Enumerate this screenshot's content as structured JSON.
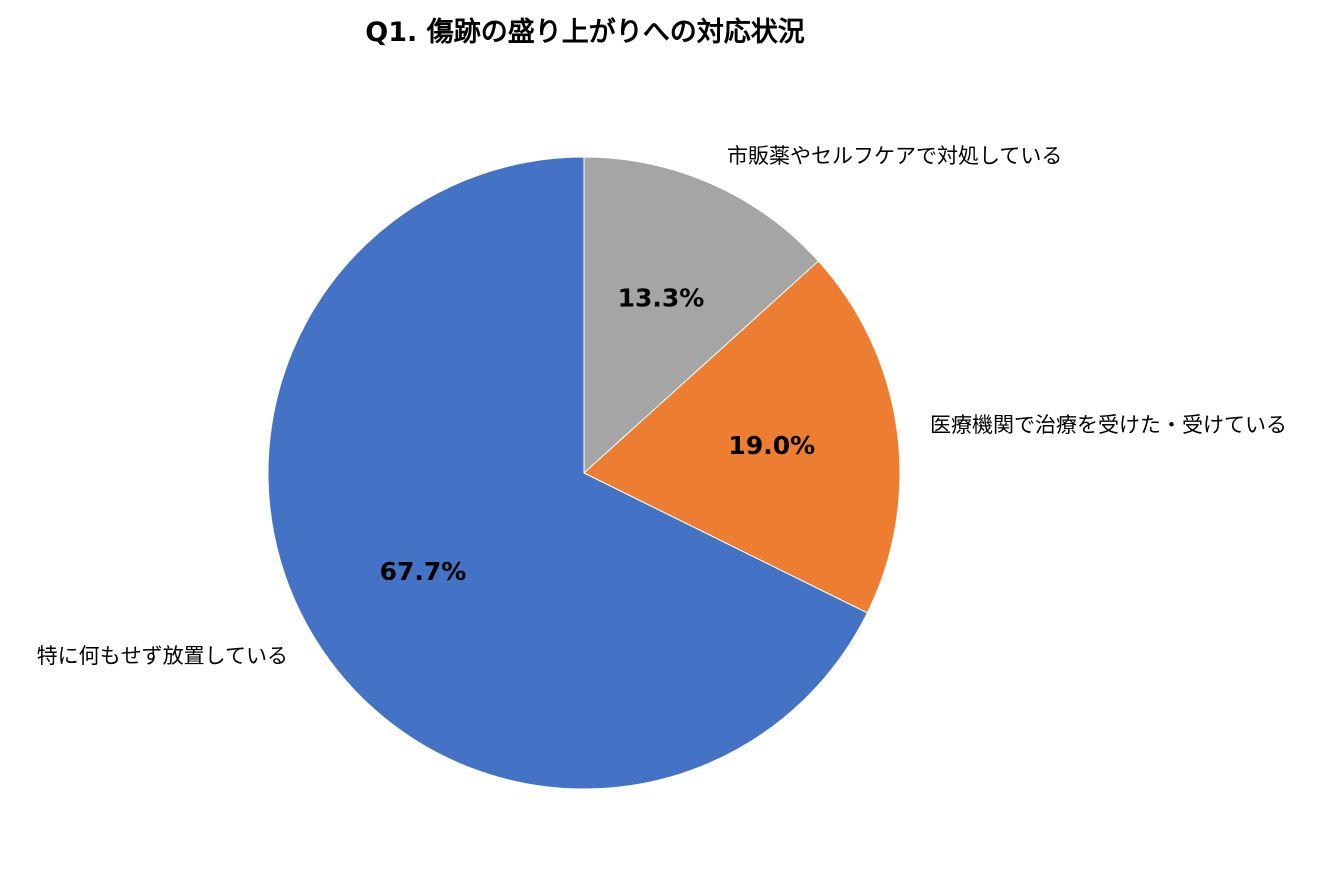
{
  "chart_data": {
    "type": "pie",
    "title": "Q1. 傷跡の盛り上がりへの対応状況",
    "slices": [
      {
        "label": "市販薬やセルフケアで対処している",
        "value": 13.3,
        "value_label": "13.3%",
        "color": "#A5A5A5"
      },
      {
        "label": "医療機関で治療を受けた・受けている",
        "value": 19.0,
        "value_label": "19.0%",
        "color": "#ED7D31"
      },
      {
        "label": "特に何もせず放置している",
        "value": 67.7,
        "value_label": "67.7%",
        "color": "#4472C4"
      }
    ],
    "start_angle": "12 o'clock",
    "direction": "clockwise",
    "legend": "none"
  }
}
